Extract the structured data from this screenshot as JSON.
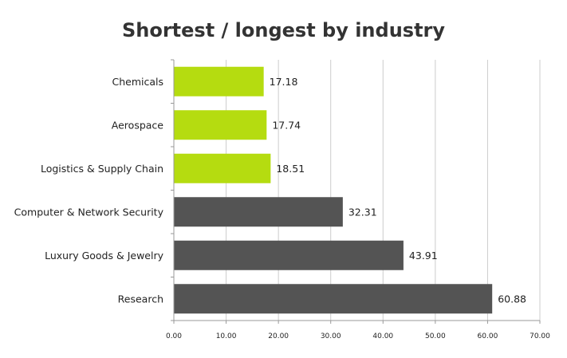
{
  "chart_data": {
    "type": "bar",
    "orientation": "horizontal",
    "title": "Shortest / longest by industry",
    "xlabel": "",
    "ylabel": "",
    "categories": [
      "Chemicals",
      "Aerospace",
      "Logistics & Supply Chain",
      "Computer & Network Security",
      "Luxury Goods & Jewelry",
      "Research"
    ],
    "values": [
      17.18,
      17.74,
      18.51,
      32.31,
      43.91,
      60.88
    ],
    "value_labels": [
      "17.18",
      "17.74",
      "18.51",
      "32.31",
      "43.91",
      "60.88"
    ],
    "bar_colors": [
      "#b5dc10",
      "#b5dc10",
      "#b5dc10",
      "#545454",
      "#545454",
      "#545454"
    ],
    "xlim": [
      0,
      70
    ],
    "x_ticks": [
      0,
      10,
      20,
      30,
      40,
      50,
      60,
      70
    ],
    "x_tick_labels": [
      "0.00",
      "10.00",
      "20.00",
      "30.00",
      "40.00",
      "50.00",
      "60.00",
      "70.00"
    ],
    "grid": true,
    "legend": "none"
  },
  "colors": {
    "highlight": "#b5dc10",
    "dark": "#545454",
    "grid": "#cccccc",
    "axis": "#999999",
    "text": "#222222"
  }
}
